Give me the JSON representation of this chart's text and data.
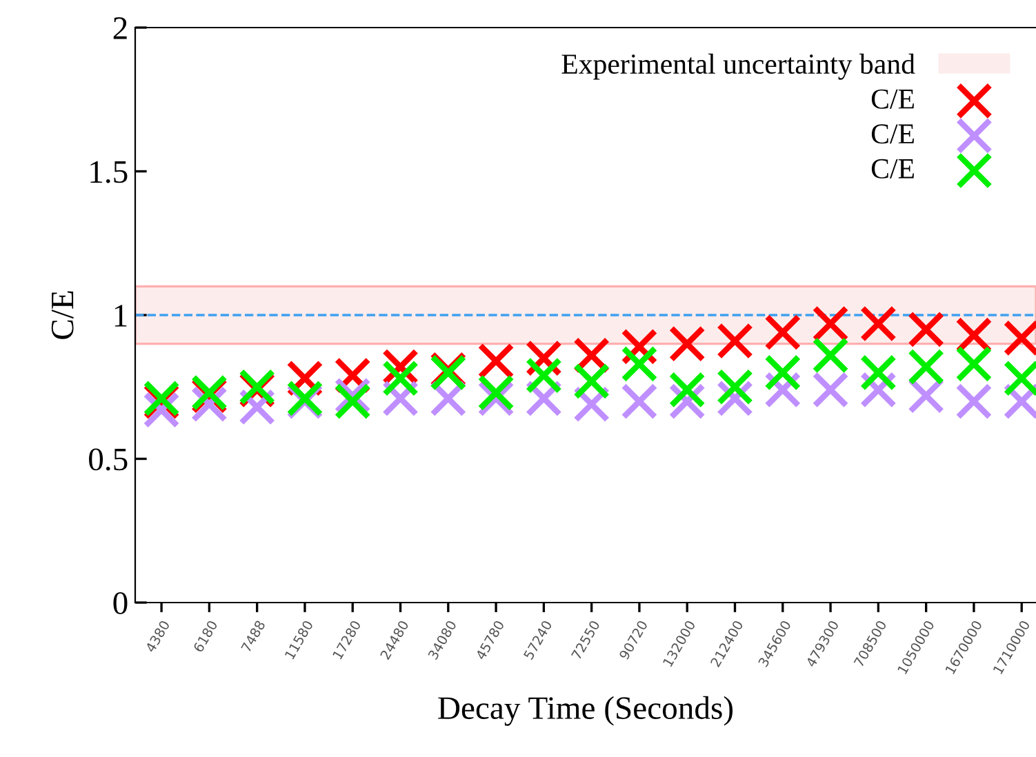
{
  "chart_data": {
    "type": "scatter",
    "xlabel": "Decay Time (Seconds)",
    "ylabel": "C/E",
    "categories": [
      "4380",
      "6180",
      "7488",
      "11580",
      "17280",
      "24480",
      "34080",
      "45780",
      "57240",
      "72550",
      "90720",
      "132000",
      "212400",
      "345600",
      "479300",
      "708500",
      "1050000",
      "1670000",
      "1710000"
    ],
    "series": [
      {
        "name": "C/E",
        "color": "#ff0000",
        "values": [
          0.7,
          0.72,
          0.74,
          0.78,
          0.79,
          0.82,
          0.81,
          0.84,
          0.85,
          0.86,
          0.89,
          0.9,
          0.91,
          0.94,
          0.97,
          0.97,
          0.95,
          0.93,
          0.92
        ]
      },
      {
        "name": "C/E",
        "color": "#bf8fff",
        "values": [
          0.67,
          0.69,
          0.68,
          0.7,
          0.72,
          0.71,
          0.71,
          0.71,
          0.71,
          0.69,
          0.7,
          0.7,
          0.71,
          0.74,
          0.74,
          0.74,
          0.72,
          0.7,
          0.7
        ]
      },
      {
        "name": "C/E",
        "color": "#00ee00",
        "values": [
          0.71,
          0.73,
          0.75,
          0.71,
          0.7,
          0.78,
          0.8,
          0.73,
          0.79,
          0.77,
          0.83,
          0.74,
          0.75,
          0.8,
          0.86,
          0.8,
          0.82,
          0.83,
          0.78
        ]
      }
    ],
    "bands": [
      {
        "axis": "y",
        "from": 0.9,
        "to": 1.1,
        "label": "Experimental uncertainty band",
        "color": "#fdecec"
      }
    ],
    "ref_lines": [
      {
        "axis": "y",
        "value": 1,
        "color": "#3fa0f0",
        "line_style": "dashed"
      }
    ],
    "ylim": [
      0,
      2
    ],
    "yticks": [
      0,
      0.5,
      1,
      1.5,
      2
    ],
    "marker": "cross",
    "grid": false,
    "legend": "top right"
  }
}
